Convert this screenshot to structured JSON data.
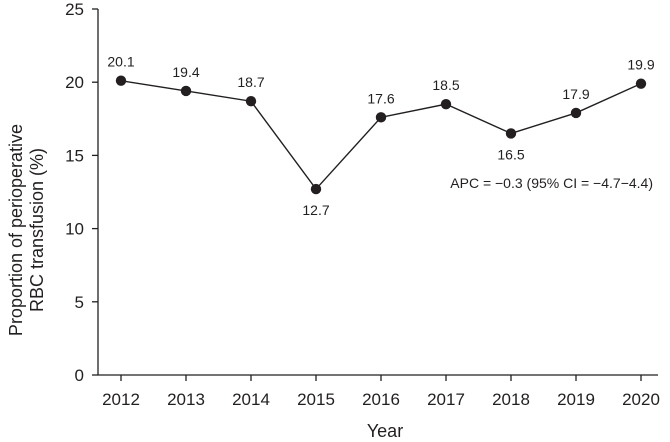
{
  "chart_data": {
    "type": "line",
    "title": "",
    "xlabel": "Year",
    "ylabel": [
      "Proportion of perioperative",
      "RBC transfusion (%)"
    ],
    "categories": [
      "2012",
      "2013",
      "2014",
      "2015",
      "2016",
      "2017",
      "2018",
      "2019",
      "2020"
    ],
    "series": [
      {
        "values": [
          20.1,
          19.4,
          18.7,
          12.7,
          17.6,
          18.5,
          16.5,
          17.9,
          19.9
        ]
      }
    ],
    "data_labels": [
      "20.1",
      "19.4",
      "18.7",
      "12.7",
      "17.6",
      "18.5",
      "16.5",
      "17.9",
      "19.9"
    ],
    "ylim": [
      0,
      25
    ],
    "yticks": [
      0,
      5,
      10,
      15,
      20,
      25
    ],
    "ytick_labels": [
      "0",
      "5",
      "10",
      "15",
      "20",
      "25"
    ],
    "grid": false,
    "annotation": "APC = −0.3 (95% CI = −4.7−4.4)",
    "colors": {
      "line": "#231f20",
      "marker": "#231f20",
      "text": "#231f20"
    }
  }
}
